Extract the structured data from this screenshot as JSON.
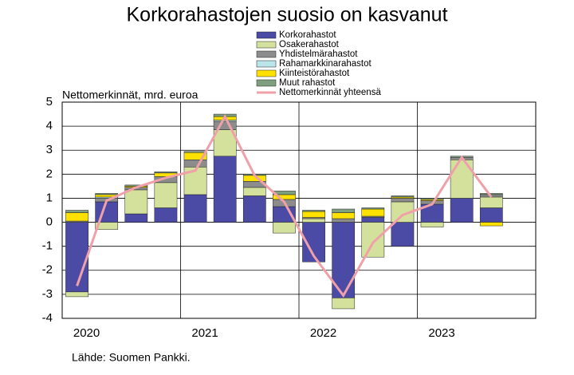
{
  "chart_data": {
    "type": "bar",
    "stacked": true,
    "title": "Korkorahastojen suosio on kasvanut",
    "y_label": "Nettomerkinnät, mrd. euroa",
    "source": "Lähde: Suomen Pankki.",
    "categories": [
      "2020",
      null,
      null,
      null,
      "2021",
      null,
      null,
      null,
      "2022",
      null,
      null,
      null,
      "2023",
      null,
      null,
      null
    ],
    "series": [
      {
        "name": "Korkorahastot",
        "color": "#4b4ba6",
        "values": [
          -2.9,
          0.85,
          0.35,
          0.6,
          1.15,
          2.75,
          1.1,
          0.65,
          -1.65,
          -3.15,
          0.2,
          -1.0,
          0.75,
          1.0,
          0.6,
          null
        ]
      },
      {
        "name": "Osakerahastot",
        "color": "#d3e19d",
        "values": [
          -0.2,
          -0.3,
          1.0,
          1.05,
          1.15,
          1.1,
          0.35,
          -0.45,
          0.15,
          -0.45,
          -1.45,
          0.85,
          -0.2,
          1.6,
          0.45,
          null
        ]
      },
      {
        "name": "Yhdistelmärahastot",
        "color": "#8c8c8c",
        "values": [
          0.05,
          0.15,
          0.1,
          0.25,
          0.3,
          0.35,
          0.25,
          0.3,
          0.05,
          0.15,
          0.05,
          0.15,
          0.15,
          0.1,
          0.1,
          null
        ]
      },
      {
        "name": "Rahamarkkinarahastot",
        "color": "#b9e5eb",
        "values": [
          0,
          0.05,
          0,
          0,
          0,
          0.05,
          0,
          0,
          0,
          0,
          0,
          0,
          0,
          0,
          0,
          null
        ]
      },
      {
        "name": "Kiinteistörahastot",
        "color": "#ffe100",
        "values": [
          0.35,
          0.1,
          0.05,
          0.15,
          0.3,
          0.15,
          0.25,
          0.2,
          0.25,
          0.25,
          0.3,
          0.05,
          0.05,
          0,
          -0.15,
          null
        ]
      },
      {
        "name": "Muut rahastot",
        "color": "#7fa07f",
        "values": [
          0.1,
          0.05,
          0.05,
          0.05,
          0.05,
          0.1,
          0.05,
          0.15,
          0.05,
          0.15,
          0.05,
          0.05,
          0.05,
          0.05,
          0.05,
          null
        ]
      }
    ],
    "line_series": {
      "name": "Nettomerkinnät yhteensä",
      "color": "#f0a0a8",
      "values": [
        -2.65,
        0.9,
        1.45,
        1.85,
        2.15,
        4.4,
        1.95,
        0.85,
        -1.4,
        -3.05,
        -0.85,
        0.3,
        0.75,
        2.7,
        1.05,
        null
      ]
    },
    "ylim": [
      -4,
      5
    ],
    "yticks": [
      -4,
      -3,
      -2,
      -1,
      0,
      1,
      2,
      3,
      4,
      5
    ],
    "grid": true
  }
}
